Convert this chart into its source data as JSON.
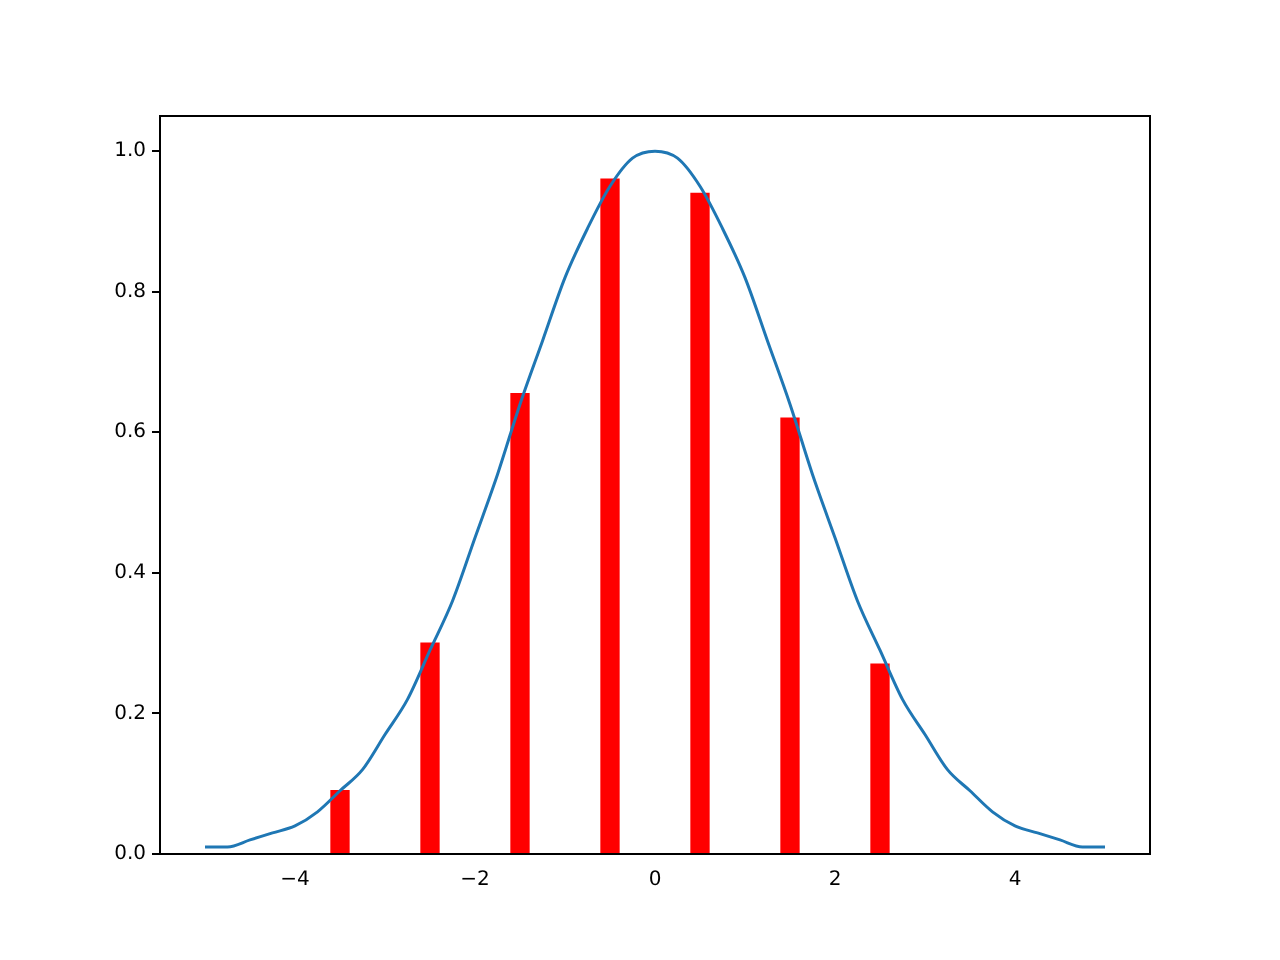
{
  "chart_data": {
    "type": "bar",
    "series": [
      {
        "type": "line",
        "color": "#1f77b4",
        "x": [
          -5,
          -4.75,
          -4.5,
          -4.25,
          -4,
          -3.75,
          -3.5,
          -3.25,
          -3,
          -2.75,
          -2.5,
          -2.25,
          -2,
          -1.75,
          -1.5,
          -1.25,
          -1,
          -0.75,
          -0.5,
          -0.25,
          0,
          0.25,
          0.5,
          0.75,
          1,
          1.25,
          1.5,
          1.75,
          2,
          2.25,
          2.5,
          2.75,
          3,
          3.25,
          3.5,
          3.75,
          4,
          4.25,
          4.5,
          4.75,
          5
        ],
        "values": [
          0.01,
          0.01,
          0.02,
          0.03,
          0.04,
          0.06,
          0.09,
          0.12,
          0.17,
          0.22,
          0.29,
          0.36,
          0.45,
          0.54,
          0.64,
          0.73,
          0.82,
          0.89,
          0.95,
          0.99,
          1.0,
          0.99,
          0.95,
          0.89,
          0.82,
          0.73,
          0.64,
          0.54,
          0.45,
          0.36,
          0.29,
          0.22,
          0.17,
          0.12,
          0.09,
          0.06,
          0.04,
          0.03,
          0.02,
          0.01,
          0.01
        ]
      },
      {
        "color": "#ff0000",
        "x": [
          -3.5,
          -2.5,
          -1.5,
          -0.5,
          0.5,
          1.5,
          2.5
        ],
        "values": [
          0.09,
          0.3,
          0.655,
          0.96,
          0.94,
          0.62,
          0.27
        ]
      }
    ],
    "xlim": [
      -5.5,
      5.5
    ],
    "xticks": [
      {
        "value": -4,
        "label": "−4"
      },
      {
        "value": -2,
        "label": "−2"
      },
      0,
      2,
      4
    ],
    "ylim": [
      0,
      1.05
    ],
    "yticks": [
      {
        "value": 0,
        "label": "0.0"
      },
      {
        "value": 0.2,
        "label": "0.2"
      },
      {
        "value": 0.4,
        "label": "0.4"
      },
      {
        "value": 0.6,
        "label": "0.6"
      },
      {
        "value": 0.8,
        "label": "0.8"
      },
      {
        "value": 1,
        "label": "1.0"
      }
    ],
    "grid": false,
    "legend": false
  }
}
